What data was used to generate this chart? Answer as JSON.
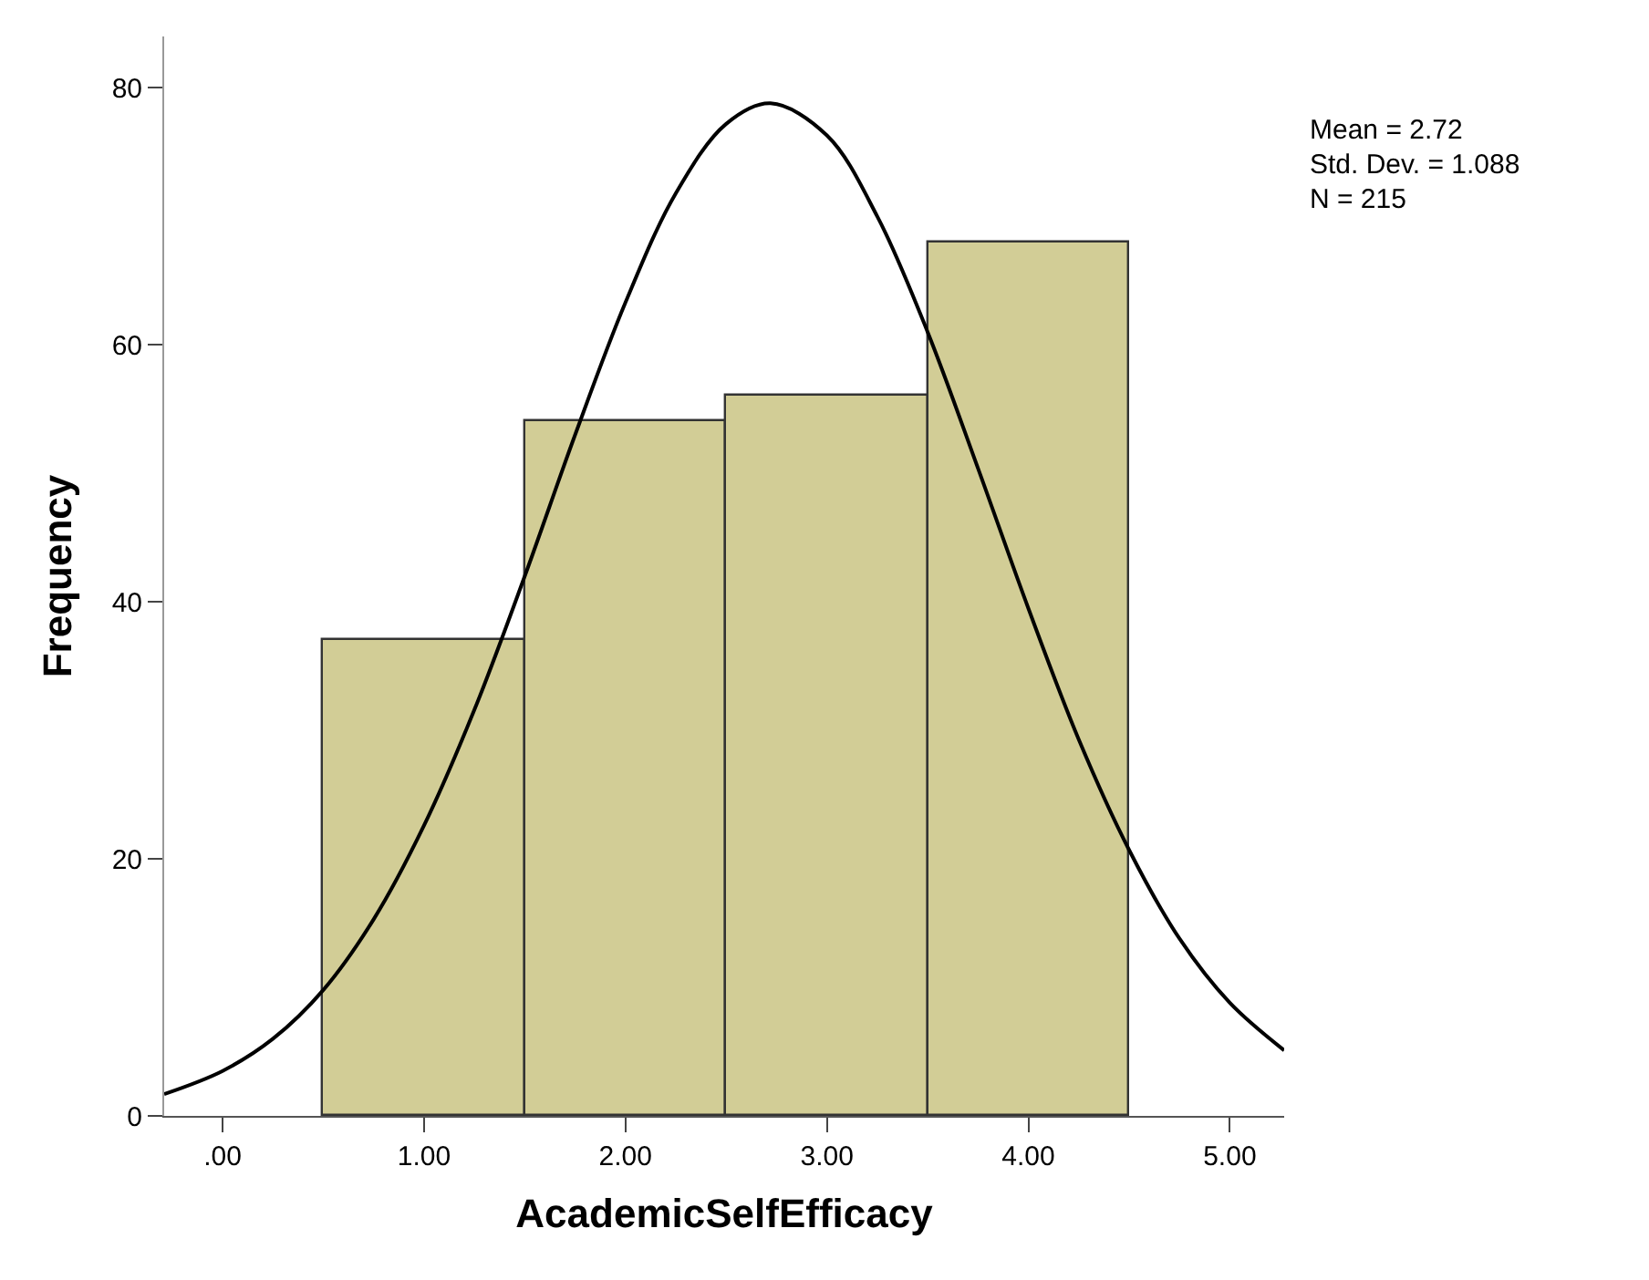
{
  "chart_data": {
    "type": "histogram",
    "xlabel": "AcademicSelfEfficacy",
    "ylabel": "Frequency",
    "bins": [
      0.5,
      1.5,
      2.5,
      3.5,
      4.5
    ],
    "values": [
      37,
      54,
      56,
      68
    ],
    "color": "#d2cd96",
    "series": [
      {
        "type": "line",
        "color": "#000000",
        "x": [
          -0.29,
          0,
          0.25,
          0.5,
          0.75,
          1.0,
          1.25,
          1.5,
          1.75,
          2.0,
          2.25,
          2.5,
          2.72,
          3.0,
          3.25,
          3.5,
          3.75,
          4.0,
          4.25,
          4.5,
          4.75,
          5.0,
          5.27
        ],
        "values": [
          1.7,
          3.5,
          6.0,
          9.8,
          15.3,
          22.6,
          31.6,
          42.0,
          53.0,
          63.3,
          71.8,
          77.2,
          78.8,
          76.3,
          70.0,
          61.0,
          50.4,
          39.5,
          29.3,
          20.7,
          13.8,
          8.8,
          5.1
        ]
      }
    ],
    "xlim": [
      -0.29,
      5.27
    ],
    "ylim": [
      0,
      84
    ],
    "xticks": [
      {
        "value": 0,
        "label": ".00"
      },
      {
        "value": 1,
        "label": "1.00"
      },
      {
        "value": 2,
        "label": "2.00"
      },
      {
        "value": 3,
        "label": "3.00"
      },
      {
        "value": 4,
        "label": "4.00"
      },
      {
        "value": 5,
        "label": "5.00"
      }
    ],
    "yticks": [
      0,
      20,
      40,
      60,
      80
    ],
    "annotations": [
      "Mean = 2.72",
      "Std. Dev. = 1.088",
      "N = 215"
    ]
  }
}
